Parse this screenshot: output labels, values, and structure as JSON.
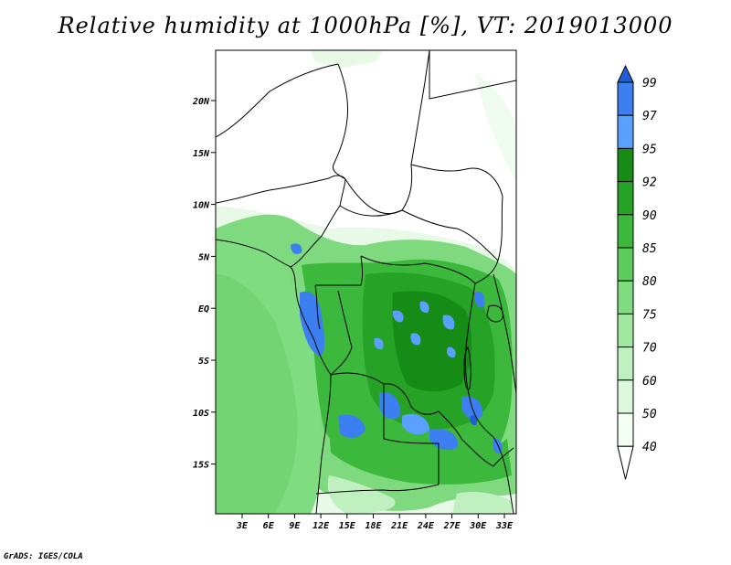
{
  "title": "Relative humidity at 1000hPa [%], VT: 2019013000",
  "credit": "GrADS: IGES/COLA",
  "axes": {
    "lon_labels": [
      "3E",
      "6E",
      "9E",
      "12E",
      "15E",
      "18E",
      "21E",
      "24E",
      "27E",
      "30E",
      "33E"
    ],
    "lat_labels": [
      "20N",
      "15N",
      "10N",
      "5N",
      "EQ",
      "5S",
      "10S",
      "15S"
    ]
  },
  "colorbar": {
    "levels": [
      "99",
      "97",
      "95",
      "92",
      "90",
      "85",
      "80",
      "75",
      "70",
      "60",
      "50",
      "40"
    ],
    "colors": [
      "#1f5fd6",
      "#3c7ff0",
      "#5aa0ff",
      "#168c16",
      "#26a326",
      "#3cb83c",
      "#5ccc5c",
      "#80dc80",
      "#a0e8a0",
      "#c0f0c0",
      "#dcf8dc",
      "#f4fff4",
      "#ffffff"
    ]
  },
  "chart_data": {
    "type": "heatmap",
    "title": "Relative humidity at 1000hPa [%], VT: 2019013000",
    "variable": "Relative humidity",
    "level": "1000hPa",
    "units": "%",
    "valid_time": "2019013000",
    "lon_range": [
      "0E",
      "35E"
    ],
    "lat_range": [
      "20S",
      "24N"
    ],
    "contour_levels": [
      40,
      50,
      60,
      70,
      75,
      80,
      85,
      90,
      92,
      95,
      97,
      99
    ]
  }
}
